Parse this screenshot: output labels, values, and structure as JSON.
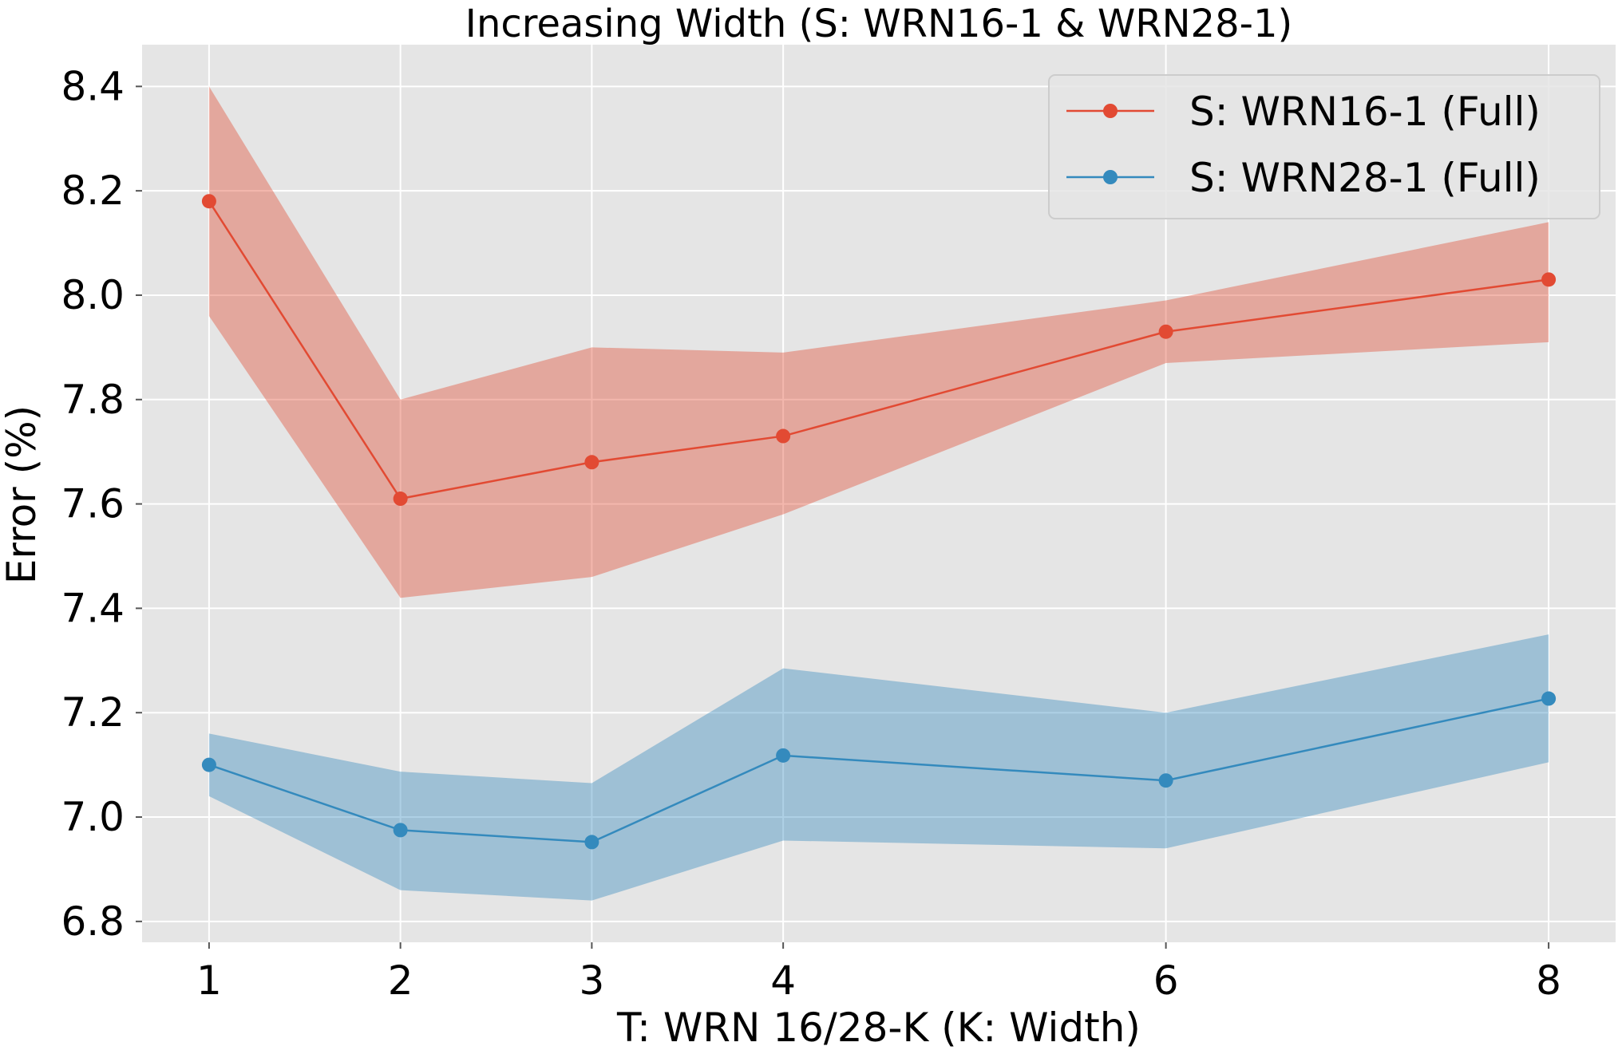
{
  "chart_data": {
    "type": "line",
    "title": "Increasing Width (S: WRN16-1 & WRN28-1)",
    "xlabel": "T: WRN 16/28-K (K: Width)",
    "ylabel": "Error (%)",
    "x": [
      1,
      2,
      3,
      4,
      6,
      8
    ],
    "xticks": [
      1,
      2,
      3,
      4,
      6,
      8
    ],
    "xtick_labels": [
      "1",
      "2",
      "3",
      "4",
      "6",
      "8"
    ],
    "xlim": [
      0.65,
      8.35
    ],
    "yticks": [
      6.8,
      7.0,
      7.2,
      7.4,
      7.6,
      7.8,
      8.0,
      8.2,
      8.4
    ],
    "ytick_labels": [
      "6.8",
      "7.0",
      "7.2",
      "7.4",
      "7.6",
      "7.8",
      "8.0",
      "8.2",
      "8.4"
    ],
    "ylim": [
      6.76,
      8.48
    ],
    "grid": true,
    "legend_position": "top-right",
    "series": [
      {
        "name": "S: WRN16-1 (Full)",
        "color": "#E24A33",
        "band_color": "#E24A33",
        "values": [
          8.18,
          7.61,
          7.68,
          7.73,
          7.93,
          8.03
        ],
        "lower": [
          7.96,
          7.42,
          7.46,
          7.58,
          7.87,
          7.91
        ],
        "upper": [
          8.4,
          7.8,
          7.9,
          7.89,
          7.99,
          8.14
        ]
      },
      {
        "name": "S: WRN28-1 (Full)",
        "color": "#348ABD",
        "band_color": "#348ABD",
        "values": [
          7.1,
          6.975,
          6.952,
          7.118,
          7.07,
          7.227
        ],
        "lower": [
          7.04,
          6.86,
          6.84,
          6.955,
          6.94,
          7.105
        ],
        "upper": [
          7.16,
          7.087,
          7.065,
          7.285,
          7.2,
          7.35
        ]
      }
    ]
  }
}
